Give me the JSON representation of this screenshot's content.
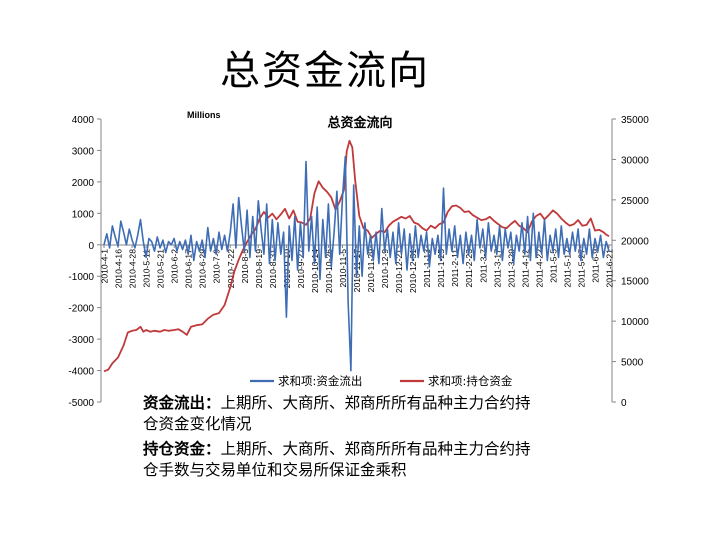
{
  "slide": {
    "title": "总资金流向",
    "desc": [
      {
        "term": "资金流出：",
        "text": "上期所、大商所、郑商所所有品种主力合约持仓资金变化情况"
      },
      {
        "term": "持仓资金：",
        "text": "上期所、大商所、郑商所所有品种主力合约持仓手数与交易单位和交易所保证金乘积"
      }
    ]
  },
  "chart_data": {
    "type": "line",
    "title": "总资金流向",
    "unit_label": "Millions",
    "xlabel": "",
    "ylabel": "",
    "ylim_left": [
      -5000,
      4000
    ],
    "yticks_left": [
      -5000,
      -4000,
      -3000,
      -2000,
      -1000,
      0,
      1000,
      2000,
      3000,
      4000
    ],
    "ylim_right": [
      0,
      35000
    ],
    "yticks_right": [
      0,
      5000,
      10000,
      15000,
      20000,
      25000,
      30000,
      35000
    ],
    "grid": false,
    "legend_position": "bottom",
    "x_tick_labels": [
      "2010-4-1",
      "2010-4-16",
      "2010-4-28",
      "2010-5-11",
      "2010-5-21",
      "2010-6-2",
      "2010-6-17",
      "2010-6-29",
      "2010-7-9",
      "2010-7-22",
      "2010-8-5",
      "2010-8-19",
      "2010-8-31",
      "2010-9-10",
      "2010-9-27",
      "2010-10-14",
      "2010-10-26",
      "2010-11-5",
      "2010-11-17",
      "2010-11-29",
      "2010-12-9",
      "2010-12-21",
      "2010-12-31",
      "2011-1-13",
      "2011-1-25",
      "2011-2-11",
      "2011-2-23",
      "2011-3-7",
      "2011-3-17",
      "2011-3-29",
      "2011-4-12",
      "2011-4-22",
      "2011-5-5",
      "2011-5-17",
      "2011-5-27",
      "2011-6-9",
      "2011-6-21"
    ],
    "series": [
      {
        "name": "求和项:资金流出",
        "axis": "left",
        "color": "#3e6db5",
        "values": [
          [
            0,
            0
          ],
          [
            0.2,
            350
          ],
          [
            0.4,
            -100
          ],
          [
            0.6,
            600
          ],
          [
            0.8,
            250
          ],
          [
            1.0,
            -50
          ],
          [
            1.2,
            750
          ],
          [
            1.4,
            400
          ],
          [
            1.6,
            0
          ],
          [
            1.8,
            500
          ],
          [
            2.0,
            150
          ],
          [
            2.2,
            -100
          ],
          [
            2.4,
            300
          ],
          [
            2.6,
            800
          ],
          [
            2.8,
            100
          ],
          [
            3.0,
            -400
          ],
          [
            3.2,
            200
          ],
          [
            3.4,
            100
          ],
          [
            3.6,
            -200
          ],
          [
            3.8,
            250
          ],
          [
            4.0,
            -100
          ],
          [
            4.2,
            150
          ],
          [
            4.4,
            -250
          ],
          [
            4.6,
            100
          ],
          [
            4.8,
            0
          ],
          [
            5.0,
            200
          ],
          [
            5.2,
            -200
          ],
          [
            5.4,
            100
          ],
          [
            5.6,
            -150
          ],
          [
            5.8,
            150
          ],
          [
            6.0,
            -300
          ],
          [
            6.2,
            300
          ],
          [
            6.4,
            -500
          ],
          [
            6.6,
            100
          ],
          [
            6.8,
            -200
          ],
          [
            7.0,
            150
          ],
          [
            7.2,
            -400
          ],
          [
            7.4,
            550
          ],
          [
            7.6,
            -200
          ],
          [
            7.8,
            200
          ],
          [
            8.0,
            -300
          ],
          [
            8.2,
            400
          ],
          [
            8.4,
            -150
          ],
          [
            8.6,
            300
          ],
          [
            8.8,
            -200
          ],
          [
            9.0,
            400
          ],
          [
            9.2,
            1300
          ],
          [
            9.4,
            -100
          ],
          [
            9.6,
            1500
          ],
          [
            9.8,
            600
          ],
          [
            10.0,
            -200
          ],
          [
            10.2,
            1100
          ],
          [
            10.4,
            -400
          ],
          [
            10.6,
            900
          ],
          [
            10.8,
            -200
          ],
          [
            11.0,
            1400
          ],
          [
            11.2,
            500
          ],
          [
            11.4,
            -300
          ],
          [
            11.6,
            1300
          ],
          [
            11.8,
            -600
          ],
          [
            12.0,
            800
          ],
          [
            12.2,
            -500
          ],
          [
            12.4,
            700
          ],
          [
            12.6,
            -300
          ],
          [
            12.8,
            400
          ],
          [
            13.0,
            -2300
          ],
          [
            13.2,
            600
          ],
          [
            13.4,
            -500
          ],
          [
            13.6,
            900
          ],
          [
            13.8,
            -800
          ],
          [
            14.0,
            700
          ],
          [
            14.2,
            -400
          ],
          [
            14.4,
            2650
          ],
          [
            14.6,
            -200
          ],
          [
            14.8,
            900
          ],
          [
            15.0,
            -600
          ],
          [
            15.2,
            1200
          ],
          [
            15.4,
            -1100
          ],
          [
            15.6,
            800
          ],
          [
            15.8,
            -400
          ],
          [
            16.0,
            1300
          ],
          [
            16.2,
            -700
          ],
          [
            16.4,
            400
          ],
          [
            16.6,
            1700
          ],
          [
            16.8,
            -300
          ],
          [
            17.0,
            1500
          ],
          [
            17.2,
            2800
          ],
          [
            17.4,
            -1800
          ],
          [
            17.6,
            -4000
          ],
          [
            17.8,
            1900
          ],
          [
            18.0,
            -1000
          ],
          [
            18.2,
            600
          ],
          [
            18.4,
            -1000
          ],
          [
            18.6,
            700
          ],
          [
            18.8,
            -300
          ],
          [
            19.0,
            300
          ],
          [
            19.2,
            -500
          ],
          [
            19.4,
            400
          ],
          [
            19.6,
            -600
          ],
          [
            19.8,
            1150
          ],
          [
            20.0,
            -200
          ],
          [
            20.2,
            500
          ],
          [
            20.4,
            -400
          ],
          [
            20.6,
            400
          ],
          [
            20.8,
            -600
          ],
          [
            21.0,
            700
          ],
          [
            21.2,
            -300
          ],
          [
            21.4,
            500
          ],
          [
            21.6,
            -800
          ],
          [
            21.8,
            350
          ],
          [
            22.0,
            -500
          ],
          [
            22.2,
            600
          ],
          [
            22.4,
            -400
          ],
          [
            22.6,
            300
          ],
          [
            22.8,
            -200
          ],
          [
            23.0,
            400
          ],
          [
            23.2,
            -700
          ],
          [
            23.4,
            200
          ],
          [
            23.6,
            -300
          ],
          [
            23.8,
            300
          ],
          [
            24.0,
            -500
          ],
          [
            24.2,
            1800
          ],
          [
            24.4,
            -300
          ],
          [
            24.6,
            500
          ],
          [
            24.8,
            -200
          ],
          [
            25.0,
            600
          ],
          [
            25.2,
            -400
          ],
          [
            25.4,
            300
          ],
          [
            25.6,
            -600
          ],
          [
            25.8,
            400
          ],
          [
            26.0,
            -300
          ],
          [
            26.2,
            300
          ],
          [
            26.4,
            -500
          ],
          [
            26.6,
            800
          ],
          [
            26.8,
            -100
          ],
          [
            27.0,
            500
          ],
          [
            27.2,
            -400
          ],
          [
            27.4,
            700
          ],
          [
            27.6,
            -200
          ],
          [
            27.8,
            300
          ],
          [
            28.0,
            -300
          ],
          [
            28.2,
            600
          ],
          [
            28.4,
            -500
          ],
          [
            28.6,
            500
          ],
          [
            28.8,
            -100
          ],
          [
            29.0,
            400
          ],
          [
            29.2,
            -600
          ],
          [
            29.4,
            300
          ],
          [
            29.6,
            -200
          ],
          [
            29.8,
            700
          ],
          [
            30.0,
            -300
          ],
          [
            30.2,
            900
          ],
          [
            30.4,
            -500
          ],
          [
            30.6,
            1000
          ],
          [
            30.8,
            -400
          ],
          [
            31.0,
            400
          ],
          [
            31.2,
            -300
          ],
          [
            31.4,
            800
          ],
          [
            31.6,
            -500
          ],
          [
            31.8,
            300
          ],
          [
            32.0,
            -200
          ],
          [
            32.2,
            500
          ],
          [
            32.4,
            -400
          ],
          [
            32.6,
            600
          ],
          [
            32.8,
            -300
          ],
          [
            33.0,
            200
          ],
          [
            33.2,
            -300
          ],
          [
            33.4,
            400
          ],
          [
            33.6,
            -200
          ],
          [
            33.8,
            500
          ],
          [
            34.0,
            -500
          ],
          [
            34.2,
            200
          ],
          [
            34.4,
            -300
          ],
          [
            34.6,
            500
          ],
          [
            34.8,
            -400
          ],
          [
            35.0,
            200
          ],
          [
            35.2,
            -200
          ],
          [
            35.4,
            300
          ],
          [
            35.6,
            -400
          ],
          [
            35.8,
            100
          ],
          [
            36.0,
            -200
          ]
        ]
      },
      {
        "name": "求和项:持仓资金",
        "axis": "right",
        "color": "#c0393b",
        "values": [
          [
            0,
            3800
          ],
          [
            0.3,
            4000
          ],
          [
            0.6,
            4800
          ],
          [
            1.0,
            5500
          ],
          [
            1.4,
            7000
          ],
          [
            1.7,
            8600
          ],
          [
            2.0,
            8800
          ],
          [
            2.3,
            8900
          ],
          [
            2.6,
            9300
          ],
          [
            2.8,
            8700
          ],
          [
            3.0,
            8900
          ],
          [
            3.3,
            8700
          ],
          [
            3.6,
            8800
          ],
          [
            4.0,
            8700
          ],
          [
            4.3,
            8900
          ],
          [
            4.6,
            8800
          ],
          [
            5.0,
            8900
          ],
          [
            5.3,
            9000
          ],
          [
            5.6,
            8700
          ],
          [
            5.9,
            8300
          ],
          [
            6.2,
            9300
          ],
          [
            6.6,
            9500
          ],
          [
            7.0,
            9600
          ],
          [
            7.4,
            10300
          ],
          [
            7.8,
            10800
          ],
          [
            8.2,
            11000
          ],
          [
            8.6,
            12000
          ],
          [
            9.0,
            14200
          ],
          [
            9.3,
            16200
          ],
          [
            9.6,
            17600
          ],
          [
            9.9,
            18800
          ],
          [
            10.2,
            19800
          ],
          [
            10.5,
            20700
          ],
          [
            10.8,
            21400
          ],
          [
            11.1,
            22700
          ],
          [
            11.4,
            23500
          ],
          [
            11.7,
            22800
          ],
          [
            12.0,
            23300
          ],
          [
            12.3,
            22600
          ],
          [
            12.6,
            23200
          ],
          [
            12.9,
            23900
          ],
          [
            13.2,
            22700
          ],
          [
            13.5,
            23700
          ],
          [
            13.8,
            22300
          ],
          [
            14.1,
            22200
          ],
          [
            14.4,
            21900
          ],
          [
            14.7,
            22700
          ],
          [
            15.0,
            25800
          ],
          [
            15.3,
            27300
          ],
          [
            15.6,
            26500
          ],
          [
            15.9,
            26000
          ],
          [
            16.2,
            25300
          ],
          [
            16.5,
            23800
          ],
          [
            16.8,
            24800
          ],
          [
            17.1,
            26200
          ],
          [
            17.3,
            31000
          ],
          [
            17.5,
            32300
          ],
          [
            17.7,
            31500
          ],
          [
            17.9,
            27500
          ],
          [
            18.2,
            23000
          ],
          [
            18.5,
            21500
          ],
          [
            18.8,
            21200
          ],
          [
            19.1,
            20300
          ],
          [
            19.4,
            20800
          ],
          [
            19.7,
            21200
          ],
          [
            20.0,
            21000
          ],
          [
            20.3,
            21800
          ],
          [
            20.6,
            22300
          ],
          [
            20.9,
            22600
          ],
          [
            21.2,
            22900
          ],
          [
            21.5,
            22700
          ],
          [
            21.8,
            23000
          ],
          [
            22.1,
            22200
          ],
          [
            22.4,
            22000
          ],
          [
            22.7,
            21500
          ],
          [
            23.0,
            21200
          ],
          [
            23.3,
            21800
          ],
          [
            23.6,
            21500
          ],
          [
            23.9,
            22000
          ],
          [
            24.2,
            22200
          ],
          [
            24.5,
            23500
          ],
          [
            24.8,
            24200
          ],
          [
            25.1,
            24300
          ],
          [
            25.4,
            24000
          ],
          [
            25.7,
            23500
          ],
          [
            26.0,
            23600
          ],
          [
            26.3,
            23100
          ],
          [
            26.6,
            22800
          ],
          [
            26.9,
            22500
          ],
          [
            27.2,
            22600
          ],
          [
            27.5,
            22900
          ],
          [
            27.8,
            22400
          ],
          [
            28.1,
            22000
          ],
          [
            28.4,
            21600
          ],
          [
            28.7,
            21500
          ],
          [
            29.0,
            22000
          ],
          [
            29.3,
            22400
          ],
          [
            29.6,
            21800
          ],
          [
            29.9,
            21500
          ],
          [
            30.2,
            21000
          ],
          [
            30.5,
            22300
          ],
          [
            30.8,
            23000
          ],
          [
            31.1,
            23300
          ],
          [
            31.4,
            22600
          ],
          [
            31.7,
            23100
          ],
          [
            32.0,
            23700
          ],
          [
            32.3,
            23300
          ],
          [
            32.6,
            22700
          ],
          [
            32.9,
            22200
          ],
          [
            33.2,
            21800
          ],
          [
            33.5,
            22000
          ],
          [
            33.8,
            22500
          ],
          [
            34.1,
            21800
          ],
          [
            34.4,
            21900
          ],
          [
            34.7,
            22700
          ],
          [
            35.0,
            21200
          ],
          [
            35.3,
            21300
          ],
          [
            35.6,
            21000
          ],
          [
            35.8,
            20700
          ],
          [
            36.0,
            20500
          ]
        ]
      }
    ]
  }
}
